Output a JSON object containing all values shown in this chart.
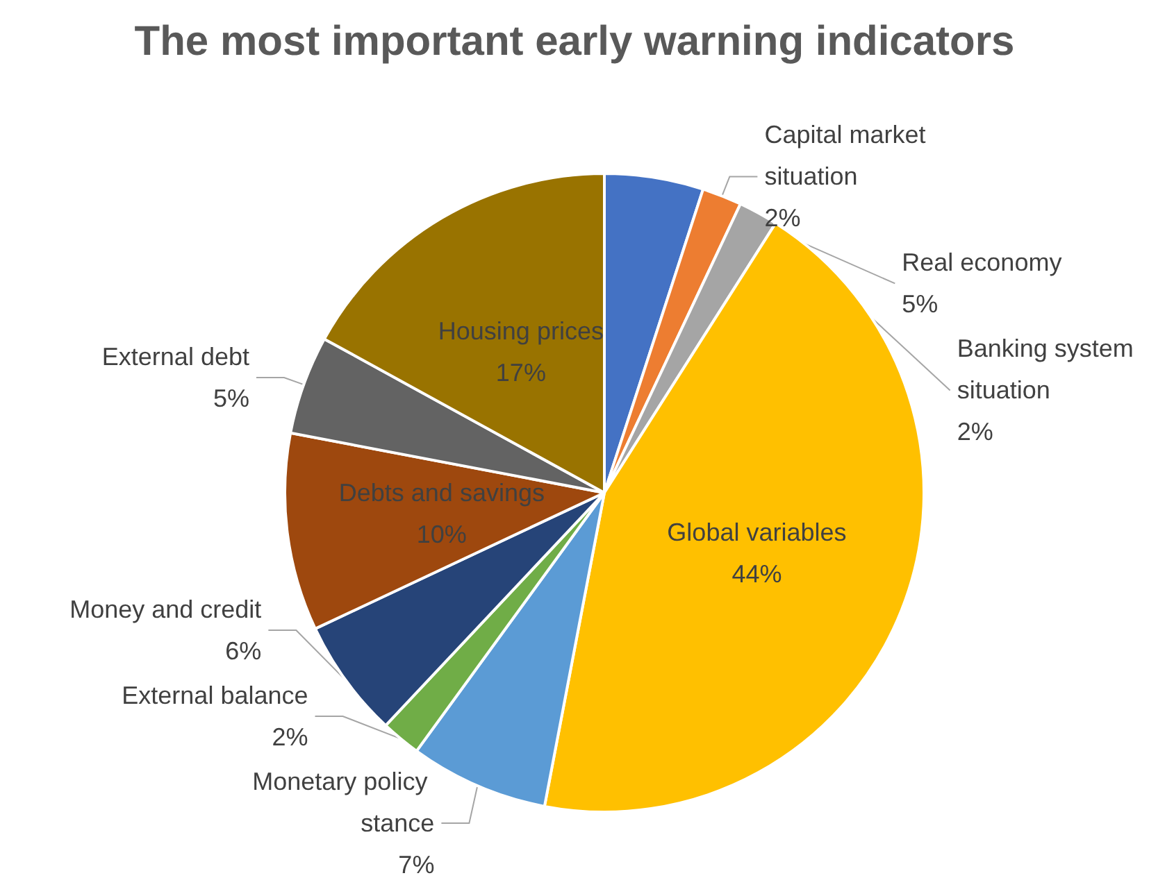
{
  "chart_data": {
    "type": "pie",
    "title": "The most important early warning indicators",
    "categories": [
      "Real economy",
      "Capital market situation",
      "Banking system situation",
      "Global variables",
      "Monetary policy stance",
      "External balance",
      "Money and credit",
      "Debts and savings",
      "External debt",
      "Housing prices"
    ],
    "values": [
      5,
      2,
      2,
      44,
      7,
      2,
      6,
      10,
      5,
      17
    ],
    "value_labels": [
      "5%",
      "2%",
      "2%",
      "44%",
      "7%",
      "2%",
      "6%",
      "10%",
      "5%",
      "17%"
    ],
    "colors": [
      "#4472c4",
      "#ed7d31",
      "#a5a5a5",
      "#ffc000",
      "#5b9bd5",
      "#70ad47",
      "#264478",
      "#9e480e",
      "#636363",
      "#997300"
    ],
    "legend": false
  }
}
